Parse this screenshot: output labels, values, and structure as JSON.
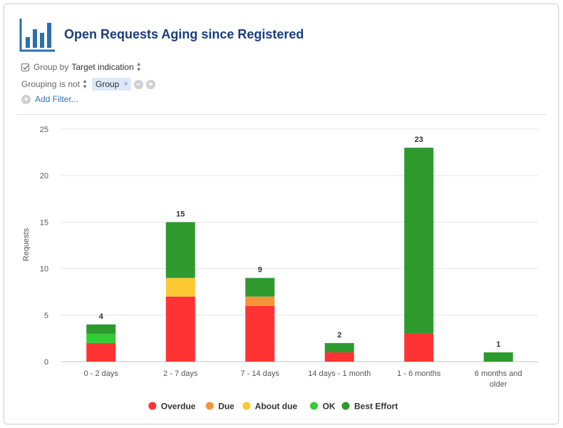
{
  "header": {
    "title": "Open Requests Aging since Registered",
    "logo_icon": "bar-chart-icon"
  },
  "controls": {
    "group_by_label": "Group by",
    "group_by_value": "Target indication",
    "filter_field": "Grouping",
    "filter_operator": "is not",
    "filter_value": "Group",
    "remove_tag_symbol": "×",
    "minus_symbol": "−",
    "plus_symbol": "+",
    "add_filter_label": "Add Filter..."
  },
  "colors": {
    "Overdue": "#ff3333",
    "Due": "#f7943a",
    "About due": "#fcc932",
    "OK": "#33cc33",
    "Best Effort": "#2e9a2e"
  },
  "chart_data": {
    "type": "bar",
    "stacked": true,
    "ylabel": "Requests",
    "ylim": [
      0,
      25
    ],
    "yticks": [
      0,
      5,
      10,
      15,
      20,
      25
    ],
    "categories": [
      "0 - 2 days",
      "2 - 7 days",
      "7 - 14 days",
      "14 days - 1 month",
      "1 - 6 months",
      "6 months and older"
    ],
    "category_lines": [
      [
        "0 - 2 days"
      ],
      [
        "2 - 7 days"
      ],
      [
        "7 - 14 days"
      ],
      [
        "14 days - 1 month"
      ],
      [
        "1 - 6 months"
      ],
      [
        "6 months and",
        "older"
      ]
    ],
    "series": [
      {
        "name": "Overdue",
        "values": [
          2,
          7,
          6,
          1,
          3,
          0
        ]
      },
      {
        "name": "Due",
        "values": [
          0,
          0,
          1,
          0,
          0,
          0
        ]
      },
      {
        "name": "About due",
        "values": [
          0,
          2,
          0,
          0,
          0,
          0
        ]
      },
      {
        "name": "OK",
        "values": [
          1,
          0,
          0,
          0,
          0,
          0
        ]
      },
      {
        "name": "Best Effort",
        "values": [
          1,
          6,
          2,
          1,
          20,
          1
        ]
      }
    ],
    "totals": [
      4,
      15,
      9,
      2,
      23,
      1
    ],
    "grid": true,
    "legend": "bottom"
  }
}
